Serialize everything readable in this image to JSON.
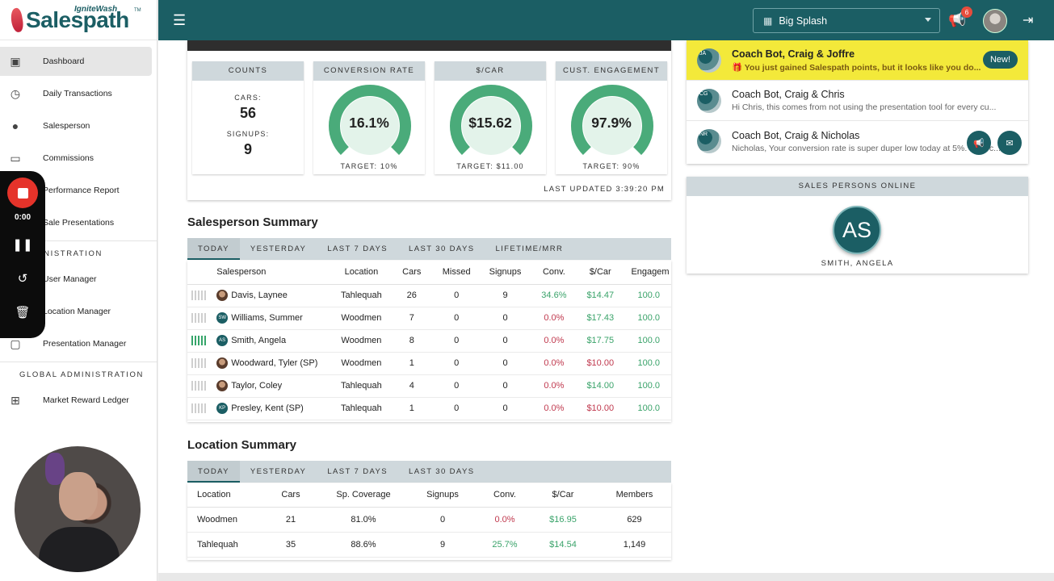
{
  "brand": {
    "name": "Salespath",
    "sub": "IgniteWash",
    "tm": "TM"
  },
  "sidebar": {
    "items": [
      {
        "label": "Dashboard",
        "icon": "dashboard-icon"
      },
      {
        "label": "Daily Transactions",
        "icon": "receipt-clock-icon"
      },
      {
        "label": "Salesperson",
        "icon": "person-icon"
      },
      {
        "label": "Commissions",
        "icon": "cash-icon"
      },
      {
        "label": "Performance Report",
        "icon": "report-icon"
      },
      {
        "label": "Sale Presentations",
        "icon": "presentation-icon"
      }
    ],
    "admin_heading": "ADMINISTRATION",
    "admin_items": [
      {
        "label": "User Manager",
        "icon": "user-icon"
      },
      {
        "label": "Location Manager",
        "icon": "location-icon"
      },
      {
        "label": "Presentation Manager",
        "icon": "monitor-icon"
      }
    ],
    "global_heading": "GLOBAL ADMINISTRATION",
    "global_items": [
      {
        "label": "Market Reward Ledger",
        "icon": "gift-icon"
      }
    ]
  },
  "recorder": {
    "time": "0:00"
  },
  "topbar": {
    "location": "Big Splash",
    "notification_count": "6"
  },
  "stats": {
    "counts_title": "COUNTS",
    "cars_label": "CARS:",
    "cars_value": "56",
    "signups_label": "SIGNUPS:",
    "signups_value": "9",
    "gauges": [
      {
        "title": "CONVERSION RATE",
        "value": "16.1%",
        "target": "TARGET: 10%",
        "level": 1.0
      },
      {
        "title": "$/CAR",
        "value": "$15.62",
        "target": "TARGET: $11.00",
        "level": 1.0
      },
      {
        "title": "CUST. ENGAGEMENT",
        "value": "97.9%",
        "target": "TARGET: 90%",
        "level": 1.0
      }
    ],
    "last_updated": "LAST UPDATED 3:39:20 PM"
  },
  "salesperson_summary": {
    "title": "Salesperson Summary",
    "tabs": [
      "TODAY",
      "YESTERDAY",
      "LAST 7 DAYS",
      "LAST 30 DAYS",
      "LIFETIME/MRR"
    ],
    "columns": [
      "Salesperson",
      "Location",
      "Cars",
      "Missed",
      "Signups",
      "Conv.",
      "$/Car",
      "Engagem"
    ],
    "rows": [
      {
        "initials": "",
        "name": "Davis, Laynee",
        "location": "Tahlequah",
        "cars": "26",
        "missed": "0",
        "signups": "9",
        "conv": "34.6%",
        "per_car": "$14.47",
        "engagement": "100.0",
        "active": false
      },
      {
        "initials": "SW",
        "name": "Williams, Summer",
        "location": "Woodmen",
        "cars": "7",
        "missed": "0",
        "signups": "0",
        "conv": "0.0%",
        "per_car": "$17.43",
        "engagement": "100.0",
        "active": false
      },
      {
        "initials": "AS",
        "name": "Smith, Angela",
        "location": "Woodmen",
        "cars": "8",
        "missed": "0",
        "signups": "0",
        "conv": "0.0%",
        "per_car": "$17.75",
        "engagement": "100.0",
        "active": true
      },
      {
        "initials": "",
        "name": "Woodward, Tyler (SP)",
        "location": "Woodmen",
        "cars": "1",
        "missed": "0",
        "signups": "0",
        "conv": "0.0%",
        "per_car": "$10.00",
        "engagement": "100.0",
        "active": false
      },
      {
        "initials": "",
        "name": "Taylor, Coley",
        "location": "Tahlequah",
        "cars": "4",
        "missed": "0",
        "signups": "0",
        "conv": "0.0%",
        "per_car": "$14.00",
        "engagement": "100.0",
        "active": false
      },
      {
        "initials": "KP",
        "name": "Presley, Kent (SP)",
        "location": "Tahlequah",
        "cars": "1",
        "missed": "0",
        "signups": "0",
        "conv": "0.0%",
        "per_car": "$10.00",
        "engagement": "100.0",
        "active": false
      }
    ]
  },
  "location_summary": {
    "title": "Location Summary",
    "tabs": [
      "TODAY",
      "YESTERDAY",
      "LAST 7 DAYS",
      "LAST 30 DAYS"
    ],
    "columns": [
      "Location",
      "Cars",
      "Sp. Coverage",
      "Signups",
      "Conv.",
      "$/Car",
      "Members"
    ],
    "rows": [
      {
        "location": "Woodmen",
        "cars": "21",
        "coverage": "81.0%",
        "signups": "0",
        "conv": "0.0%",
        "per_car": "$16.95",
        "members": "629"
      },
      {
        "location": "Tahlequah",
        "cars": "35",
        "coverage": "88.6%",
        "signups": "9",
        "conv": "25.7%",
        "per_car": "$14.54",
        "members": "1,149"
      }
    ]
  },
  "chats": [
    {
      "initials": "JA",
      "title": "Coach Bot, Craig & Joffre",
      "preview": "🎁 You just gained Salespath points, but it looks like you do...",
      "badge": "New!"
    },
    {
      "initials": "CG",
      "title": "Coach Bot, Craig & Chris",
      "preview": "Hi Chris, this comes from not using the presentation tool for every cu..."
    },
    {
      "initials": "NR",
      "title": "Coach Bot, Craig & Nicholas",
      "preview": "Nicholas, Your conversion rate is super duper low today at 5%. Let's c..."
    }
  ],
  "online": {
    "title": "SALES PERSONS ONLINE",
    "initials": "AS",
    "name": "SMITH, ANGELA"
  },
  "colors": {
    "primary": "#1b5e64",
    "highlight": "#f3e93a",
    "green": "#3aa36a",
    "red": "#c0394e"
  }
}
